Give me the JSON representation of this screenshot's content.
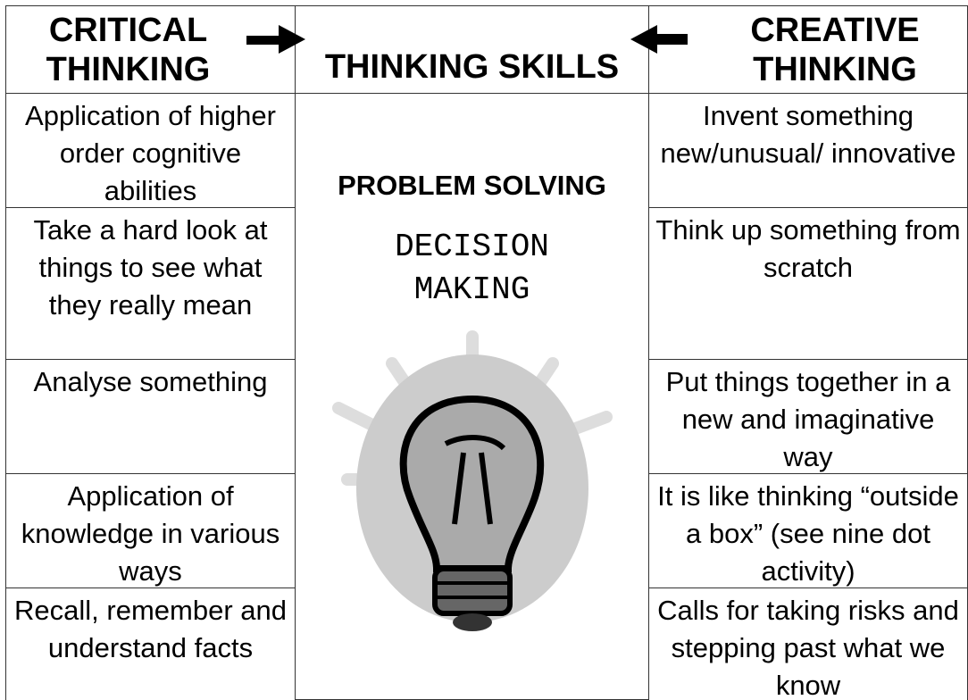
{
  "header": {
    "left": "CRITICAL THINKING",
    "center": "THINKING SKILLS",
    "right": "CREATIVE THINKING"
  },
  "center": {
    "problem_solving": "PROBLEM SOLVING",
    "decision_making": "DECISION MAKING"
  },
  "left_rows": [
    "Application of higher order cognitive abilities",
    "Take a hard look at things to see what they really mean",
    "Analyse something",
    "Application of knowledge in various ways",
    "Recall, remember and understand facts"
  ],
  "right_rows": [
    "Invent something new/unusual/ innovative",
    "Think up something from scratch",
    "Put things together in a new and imaginative way",
    "It is like thinking “outside a box” (see nine dot activity)",
    "Calls for taking risks and stepping past what we know"
  ]
}
